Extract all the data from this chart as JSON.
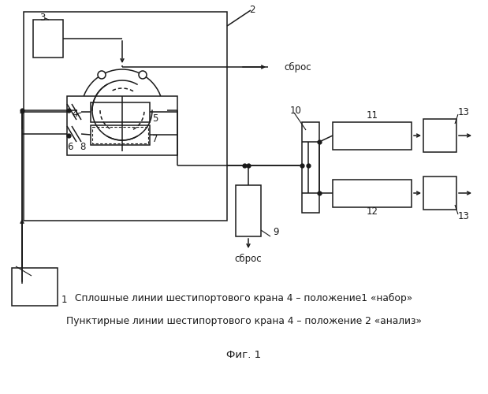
{
  "caption_line1": "Сплошные линии шестипортового крана 4 – положение1 «набор»",
  "caption_line2": "Пунктирные линии шестипортового крана 4 – положение 2 «анализ»",
  "fig_label": "Фиг. 1",
  "bg_color": "#ffffff",
  "line_color": "#1a1a1a"
}
